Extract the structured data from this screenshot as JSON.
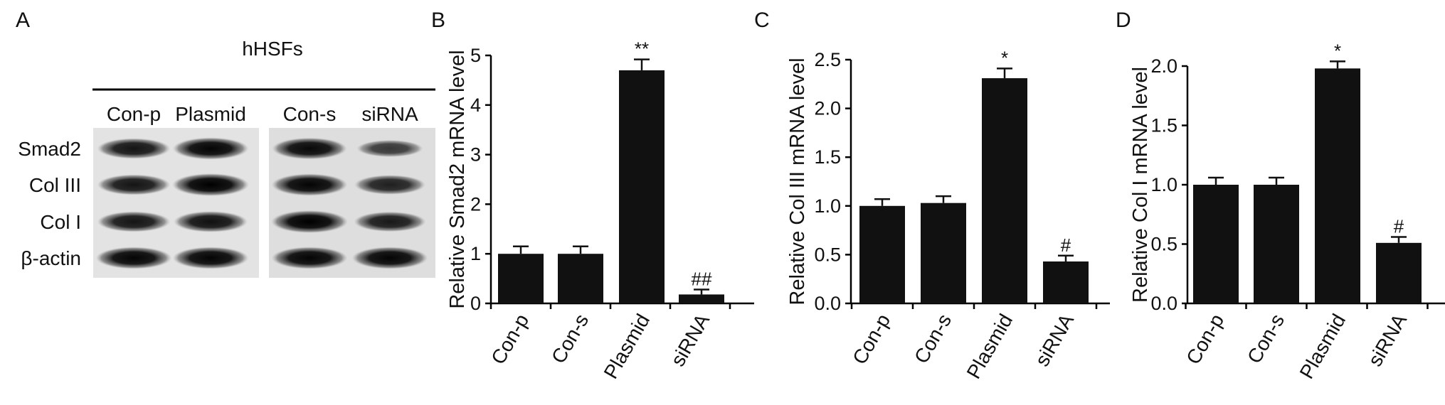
{
  "panel_a": {
    "letter": "A",
    "cell_line": "hHSFs",
    "lanes": [
      "Con-p",
      "Plasmid",
      "Con-s",
      "siRNA"
    ],
    "rows": [
      "Smad2",
      "Col III",
      "Col I",
      "β-actin"
    ],
    "band_intensity": [
      [
        0.8,
        0.95,
        0.9,
        0.45
      ],
      [
        0.8,
        1.0,
        0.95,
        0.7
      ],
      [
        0.8,
        0.85,
        1.0,
        0.75
      ],
      [
        0.95,
        0.95,
        0.95,
        0.95
      ]
    ]
  },
  "chart_data": [
    {
      "letter": "B",
      "type": "bar",
      "categories": [
        "Con-p",
        "Con-s",
        "Plasmid",
        "siRNA"
      ],
      "values": [
        1.0,
        1.0,
        4.7,
        0.18
      ],
      "errors": [
        0.15,
        0.15,
        0.22,
        0.1
      ],
      "significance": [
        "",
        "",
        "**",
        "##"
      ],
      "ylabel": "Relative Smad2 mRNA level",
      "ylim": [
        0,
        5
      ],
      "ticks": [
        "0",
        "1",
        "2",
        "3",
        "4",
        "5"
      ]
    },
    {
      "letter": "C",
      "type": "bar",
      "categories": [
        "Con-p",
        "Con-s",
        "Plasmid",
        "siRNA"
      ],
      "values": [
        1.0,
        1.03,
        2.31,
        0.43
      ],
      "errors": [
        0.07,
        0.07,
        0.1,
        0.06
      ],
      "significance": [
        "",
        "",
        "*",
        "#"
      ],
      "ylabel": "Relative Col III mRNA level",
      "ylim": [
        0,
        2.5
      ],
      "ticks": [
        "0.0",
        "0.5",
        "1.0",
        "1.5",
        "2.0",
        "2.5"
      ]
    },
    {
      "letter": "D",
      "type": "bar",
      "categories": [
        "Con-p",
        "Con-s",
        "Plasmid",
        "siRNA"
      ],
      "values": [
        1.0,
        1.0,
        1.98,
        0.51
      ],
      "errors": [
        0.06,
        0.06,
        0.06,
        0.05
      ],
      "significance": [
        "",
        "",
        "*",
        "#"
      ],
      "ylabel": "Relative Col I mRNA level",
      "ylim": [
        0,
        2.0
      ],
      "ticks": [
        "0.0",
        "0.5",
        "1.0",
        "1.5",
        "2.0"
      ]
    }
  ]
}
